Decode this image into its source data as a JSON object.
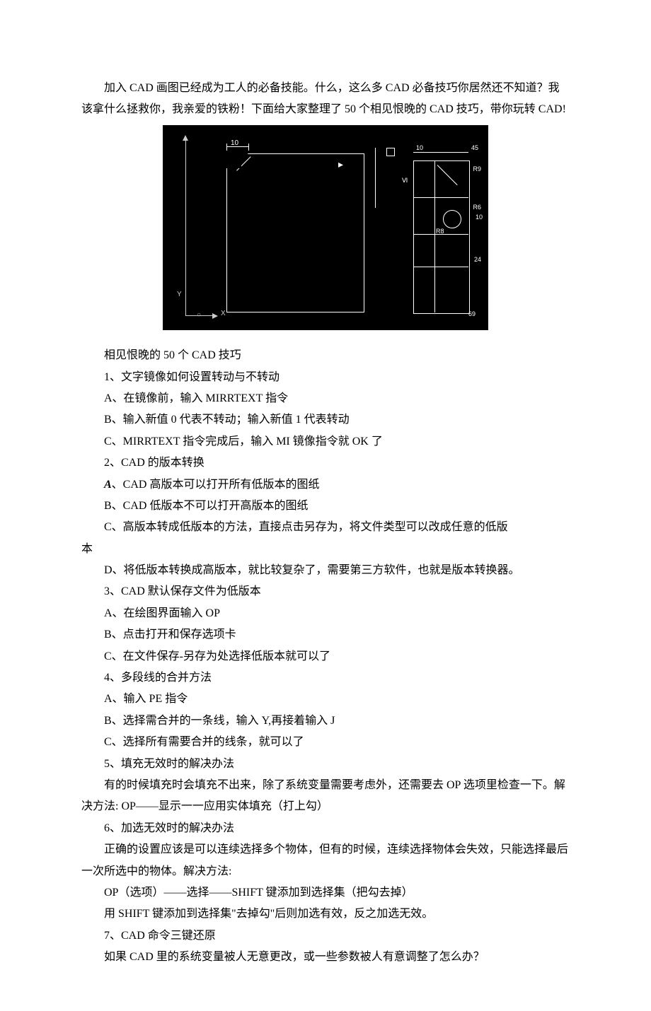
{
  "intro": "加入 CAD 画图已经成为工人的必备技能。什么，这么多 CAD 必备技巧你居然还不知道？我该拿什么拯救你，我亲爱的铁粉！下面给大家整理了 50 个相见恨晚的 CAD 技巧，带你玩转 CAD!",
  "figure": {
    "background": "#000000",
    "line_color": "#ffffff",
    "axis_color": "#cccccc",
    "dim_top": "10",
    "axis_y": "Y",
    "axis_x": "X",
    "axis_origin": "○",
    "cursor": "▸",
    "right": {
      "dim_top_left": "10",
      "dim_top_right": "45",
      "l1": "Ⅵ",
      "l2": "R9",
      "l3": "R6",
      "l4": "10",
      "l5": "24",
      "l6": "R8",
      "l7": "69"
    }
  },
  "heading": "相见恨晚的 50 个 CAD 技巧",
  "sections": [
    {
      "title": "1、文字镜像如何设置转动与不转动",
      "items": [
        "A、在镜像前，输入 MIRRTEXT 指令",
        "B、输入新值 0 代表不转动；输入新值 1 代表转动",
        "C、MIRRTEXT 指令完成后，输入 MI 镜像指令就 OK 了"
      ]
    },
    {
      "title": "2、CAD 的版本转换",
      "items": [
        "、CAD 高版本可以打开所有低版本的图纸",
        "B、CAD 低版本不可以打开高版本的图纸",
        "C、高版本转成低版本的方法，直接点击另存为，将文件类型可以改成任意的低版",
        "D、将低版本转换成高版本，就比较复杂了，需要第三方软件，也就是版本转换器。"
      ],
      "italicA_index": 0,
      "wrap_after_index": 2,
      "wrap_text": "本"
    },
    {
      "title": "3、CAD 默认保存文件为低版本",
      "items": [
        "A、在绘图界面输入 OP",
        "B、点击打开和保存选项卡",
        "C、在文件保存-另存为处选择低版本就可以了"
      ]
    },
    {
      "title": "4、多段线的合并方法",
      "items": [
        "A、输入 PE 指令",
        "B、选择需合并的一条线，输入 Y,再接着输入 J",
        "C、选择所有需要合并的线条，就可以了"
      ]
    },
    {
      "title": "5、填充无效时的解决办法",
      "body": [
        "有的时候填充时会填充不出来，除了系统变量需要考虑外，还需要去 OP 选项里检查一下。解决方法: OP——显示一一应用实体填充（打上勾）"
      ]
    },
    {
      "title": "6、加选无效时的解决办法",
      "body": [
        "正确的设置应该是可以连续选择多个物体，但有的时候，连续选择物体会失效，只能选择最后一次所选中的物体。解决方法:",
        "OP（选项）——选择——SHIFT 键添加到选择集（把勾去掉）",
        "用 SHIFT 键添加到选择集\"去掉勾\"后则加选有效，反之加选无效。"
      ]
    },
    {
      "title": "7、CAD 命令三键还原",
      "body": [
        "如果 CAD 里的系统变量被人无意更改，或一些参数被人有意调整了怎么办？"
      ]
    }
  ]
}
